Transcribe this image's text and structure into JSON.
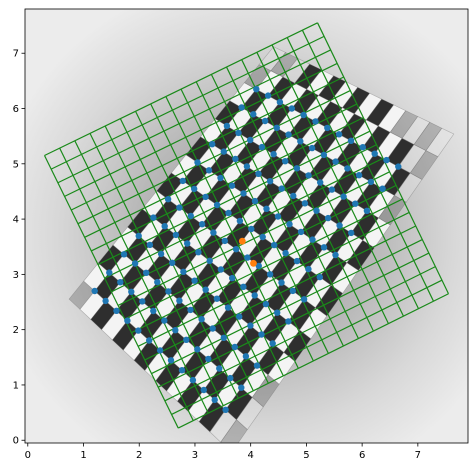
{
  "chart_data": {
    "type": "scatter",
    "title": "",
    "xlabel": "",
    "ylabel": "",
    "xlim": [
      -0.05,
      7.9
    ],
    "ylim": [
      -0.05,
      7.8
    ],
    "x_ticks": [
      0,
      1,
      2,
      3,
      4,
      5,
      6,
      7
    ],
    "y_ticks": [
      0,
      1,
      2,
      3,
      4,
      5,
      6,
      7
    ],
    "x_tick_labels": [
      "0",
      "1",
      "2",
      "3",
      "4",
      "5",
      "6",
      "7"
    ],
    "y_tick_labels": [
      "0",
      "1",
      "2",
      "3",
      "4",
      "5",
      "6",
      "7"
    ],
    "grid": false,
    "background": "grayscale checkerboard micrograph",
    "overlay_grid": {
      "color": "#1a8a1a",
      "corners": [
        [
          0.3,
          5.15
        ],
        [
          5.2,
          7.55
        ],
        [
          7.55,
          2.65
        ],
        [
          2.7,
          0.22
        ]
      ],
      "cols": 18,
      "rows": 20
    },
    "detected_points": {
      "color": "#1f77b4",
      "bounds": [
        [
          1.2,
          2.7
        ],
        [
          4.1,
          6.35
        ],
        [
          6.65,
          4.95
        ],
        [
          3.55,
          0.55
        ]
      ],
      "cols": 12,
      "rows": 13
    },
    "highlight_points": {
      "color": "#ff7f0e",
      "points": [
        [
          3.85,
          3.6
        ],
        [
          4.05,
          3.2
        ]
      ]
    }
  }
}
